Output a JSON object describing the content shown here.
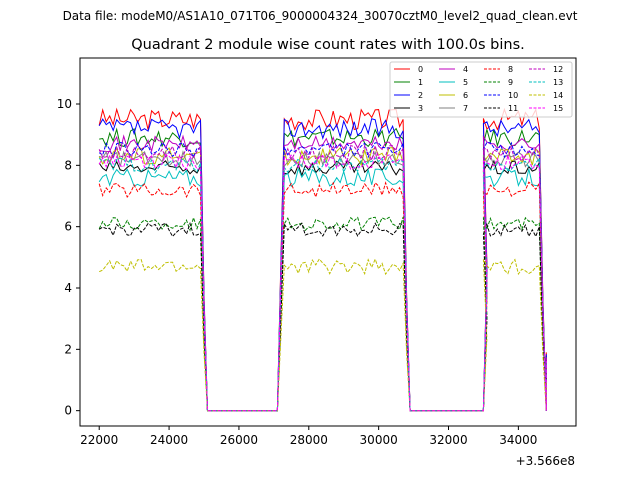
{
  "suptitle": "Data file: modeM0/AS1A10_071T06_9000004324_30070cztM0_level2_quad_clean.evt",
  "chart_data": {
    "type": "line",
    "title": "Quadrant 2 module wise count rates with 100.0s bins.",
    "xlabel": "",
    "ylabel": "",
    "x_offset_label": "+3.566e8",
    "xlim": [
      21450,
      35650
    ],
    "ylim": [
      -0.5,
      11.5
    ],
    "x_ticks": [
      22000,
      24000,
      26000,
      28000,
      30000,
      32000,
      34000
    ],
    "x_tick_labels": [
      "22000",
      "24000",
      "26000",
      "28000",
      "30000",
      "32000",
      "34000"
    ],
    "y_ticks": [
      0,
      2,
      4,
      6,
      8,
      10
    ],
    "y_tick_labels": [
      "0",
      "2",
      "4",
      "6",
      "8",
      "10"
    ],
    "legend_position": "top-right",
    "segments": [
      {
        "start": 22000,
        "end": 24900
      },
      {
        "start": 27300,
        "end": 30700
      },
      {
        "start": 33000,
        "end": 34600
      }
    ],
    "gaps": [
      {
        "start": 25200,
        "end": 27100
      },
      {
        "start": 30900,
        "end": 33000
      }
    ],
    "series": [
      {
        "name": "0",
        "level": 9.5,
        "amp": 0.35,
        "color": "#ff0000",
        "dash": "solid"
      },
      {
        "name": "1",
        "level": 8.9,
        "amp": 0.3,
        "color": "#008000",
        "dash": "solid"
      },
      {
        "name": "2",
        "level": 9.2,
        "amp": 0.32,
        "color": "#0000ff",
        "dash": "solid"
      },
      {
        "name": "3",
        "level": 7.9,
        "amp": 0.25,
        "color": "#000000",
        "dash": "solid"
      },
      {
        "name": "4",
        "level": 8.7,
        "amp": 0.25,
        "color": "#bf00bf",
        "dash": "solid"
      },
      {
        "name": "5",
        "level": 7.6,
        "amp": 0.3,
        "color": "#00bfbf",
        "dash": "solid"
      },
      {
        "name": "6",
        "level": 8.3,
        "amp": 0.3,
        "color": "#bfbf00",
        "dash": "solid"
      },
      {
        "name": "7",
        "level": 8.2,
        "amp": 0.25,
        "color": "#808080",
        "dash": "solid"
      },
      {
        "name": "8",
        "level": 7.2,
        "amp": 0.25,
        "color": "#ff0000",
        "dash": "dashed"
      },
      {
        "name": "9",
        "level": 6.1,
        "amp": 0.22,
        "color": "#008000",
        "dash": "dashed"
      },
      {
        "name": "10",
        "level": 8.5,
        "amp": 0.25,
        "color": "#0000ff",
        "dash": "dashed"
      },
      {
        "name": "11",
        "level": 5.9,
        "amp": 0.22,
        "color": "#000000",
        "dash": "dashed"
      },
      {
        "name": "12",
        "level": 8.4,
        "amp": 0.25,
        "color": "#bf00bf",
        "dash": "dashed"
      },
      {
        "name": "13",
        "level": 8.0,
        "amp": 0.25,
        "color": "#00bfbf",
        "dash": "dashed"
      },
      {
        "name": "14",
        "level": 4.7,
        "amp": 0.25,
        "color": "#bfbf00",
        "dash": "dashed"
      },
      {
        "name": "15",
        "level": 8.1,
        "amp": 0.25,
        "color": "#ff00ff",
        "dash": "dashed"
      }
    ]
  }
}
